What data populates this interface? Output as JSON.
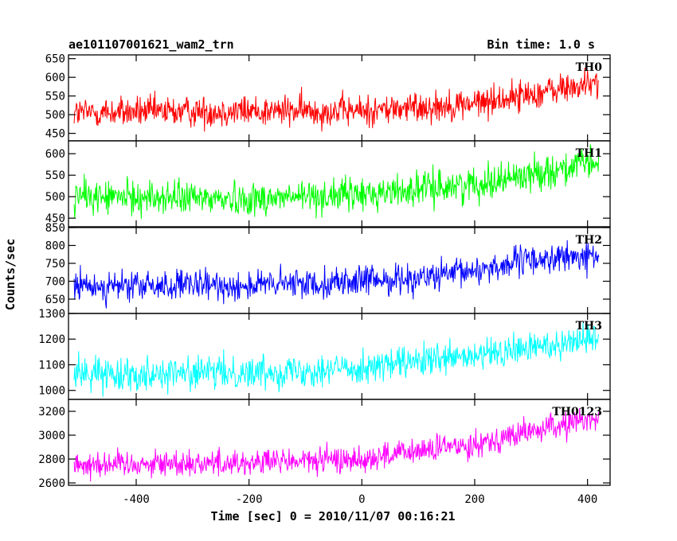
{
  "header": {
    "title": "ae101107001621_wam2_trn",
    "bin_time": "Bin time: 1.0 s"
  },
  "chart_data": {
    "type": "line",
    "xlabel": "Time [sec] 0 = 2010/11/07 00:16:21",
    "ylabel": "Counts/sec",
    "xlim": [
      -520,
      440
    ],
    "x_ticks": [
      -400,
      -200,
      0,
      200,
      400
    ],
    "x_range": [
      -510,
      420
    ],
    "panels": [
      {
        "name": "TH0",
        "color": "#ff0000",
        "ylim": [
          430,
          660
        ],
        "ticks": [
          450,
          500,
          550,
          600,
          650
        ],
        "trend": [
          [
            -510,
            505
          ],
          [
            -200,
            510
          ],
          [
            0,
            510
          ],
          [
            200,
            530
          ],
          [
            420,
            585
          ]
        ],
        "noise": 30
      },
      {
        "name": "TH1",
        "color": "#00ff00",
        "ylim": [
          430,
          630
        ],
        "ticks": [
          450,
          500,
          550,
          600
        ],
        "trend": [
          [
            -510,
            500
          ],
          [
            -200,
            495
          ],
          [
            0,
            505
          ],
          [
            200,
            530
          ],
          [
            420,
            580
          ]
        ],
        "noise": 28
      },
      {
        "name": "TH2",
        "color": "#0000ff",
        "ylim": [
          610,
          850
        ],
        "ticks": [
          650,
          700,
          750,
          800,
          850
        ],
        "trend": [
          [
            -510,
            685
          ],
          [
            -200,
            688
          ],
          [
            0,
            700
          ],
          [
            150,
            715
          ],
          [
            300,
            760
          ],
          [
            420,
            770
          ]
        ],
        "noise": 30
      },
      {
        "name": "TH3",
        "color": "#00ffff",
        "ylim": [
          965,
          1300
        ],
        "ticks": [
          1000,
          1100,
          1200,
          1300
        ],
        "trend": [
          [
            -510,
            1065
          ],
          [
            -200,
            1070
          ],
          [
            0,
            1090
          ],
          [
            200,
            1130
          ],
          [
            420,
            1210
          ]
        ],
        "noise": 45
      },
      {
        "name": "TH0123",
        "color": "#ff00ff",
        "ylim": [
          2580,
          3300
        ],
        "ticks": [
          2600,
          2800,
          3000,
          3200
        ],
        "trend": [
          [
            -510,
            2760
          ],
          [
            -200,
            2770
          ],
          [
            0,
            2800
          ],
          [
            200,
            2930
          ],
          [
            420,
            3150
          ]
        ],
        "noise": 80
      }
    ]
  }
}
